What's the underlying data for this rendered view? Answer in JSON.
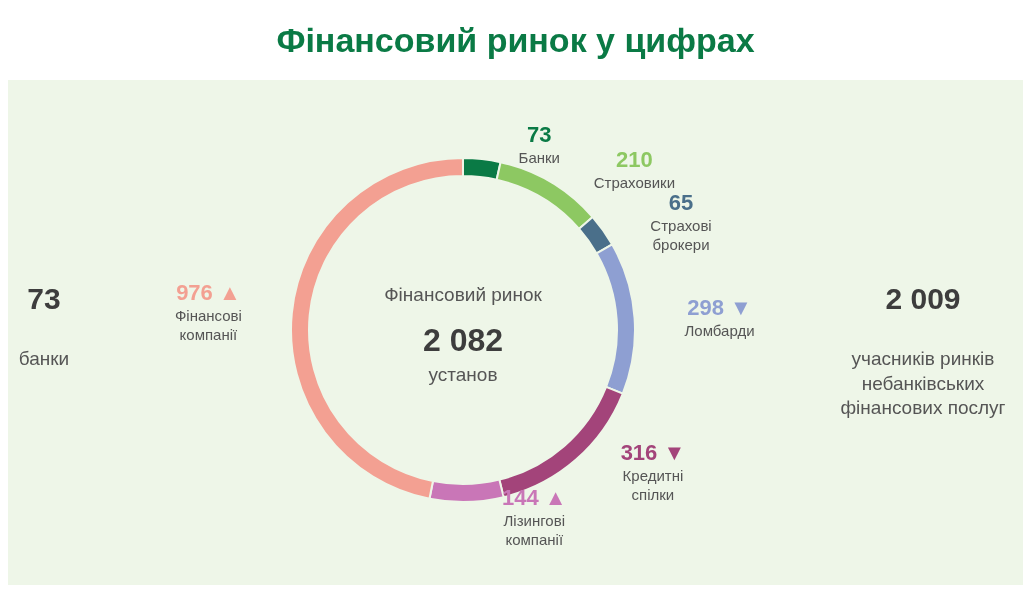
{
  "chart_data": {
    "type": "donut",
    "title": "Фінансовий ринок у цифрах",
    "categories": [
      "Банки",
      "Страховики",
      "Страхові брокери",
      "Ломбарди",
      "Кредитні спілки",
      "Лізингові компанії",
      "Фінансові компанії"
    ],
    "values": [
      73,
      210,
      65,
      298,
      316,
      144,
      976
    ],
    "colors": [
      "#0a7a45",
      "#8dc862",
      "#4a6f8a",
      "#8e9fd2",
      "#a3447a",
      "#c976b7",
      "#f3a092"
    ],
    "value_labels": [
      "73",
      "210",
      "65",
      "298 ▼",
      "316 ▼",
      "144 ▲",
      "976 ▲"
    ],
    "annotations": [
      "Фінансовий ринок",
      "2 082",
      "установ",
      "73",
      "банки",
      "2 009",
      "учасників ринків небанківських фінансових послуг"
    ],
    "legend": false
  }
}
